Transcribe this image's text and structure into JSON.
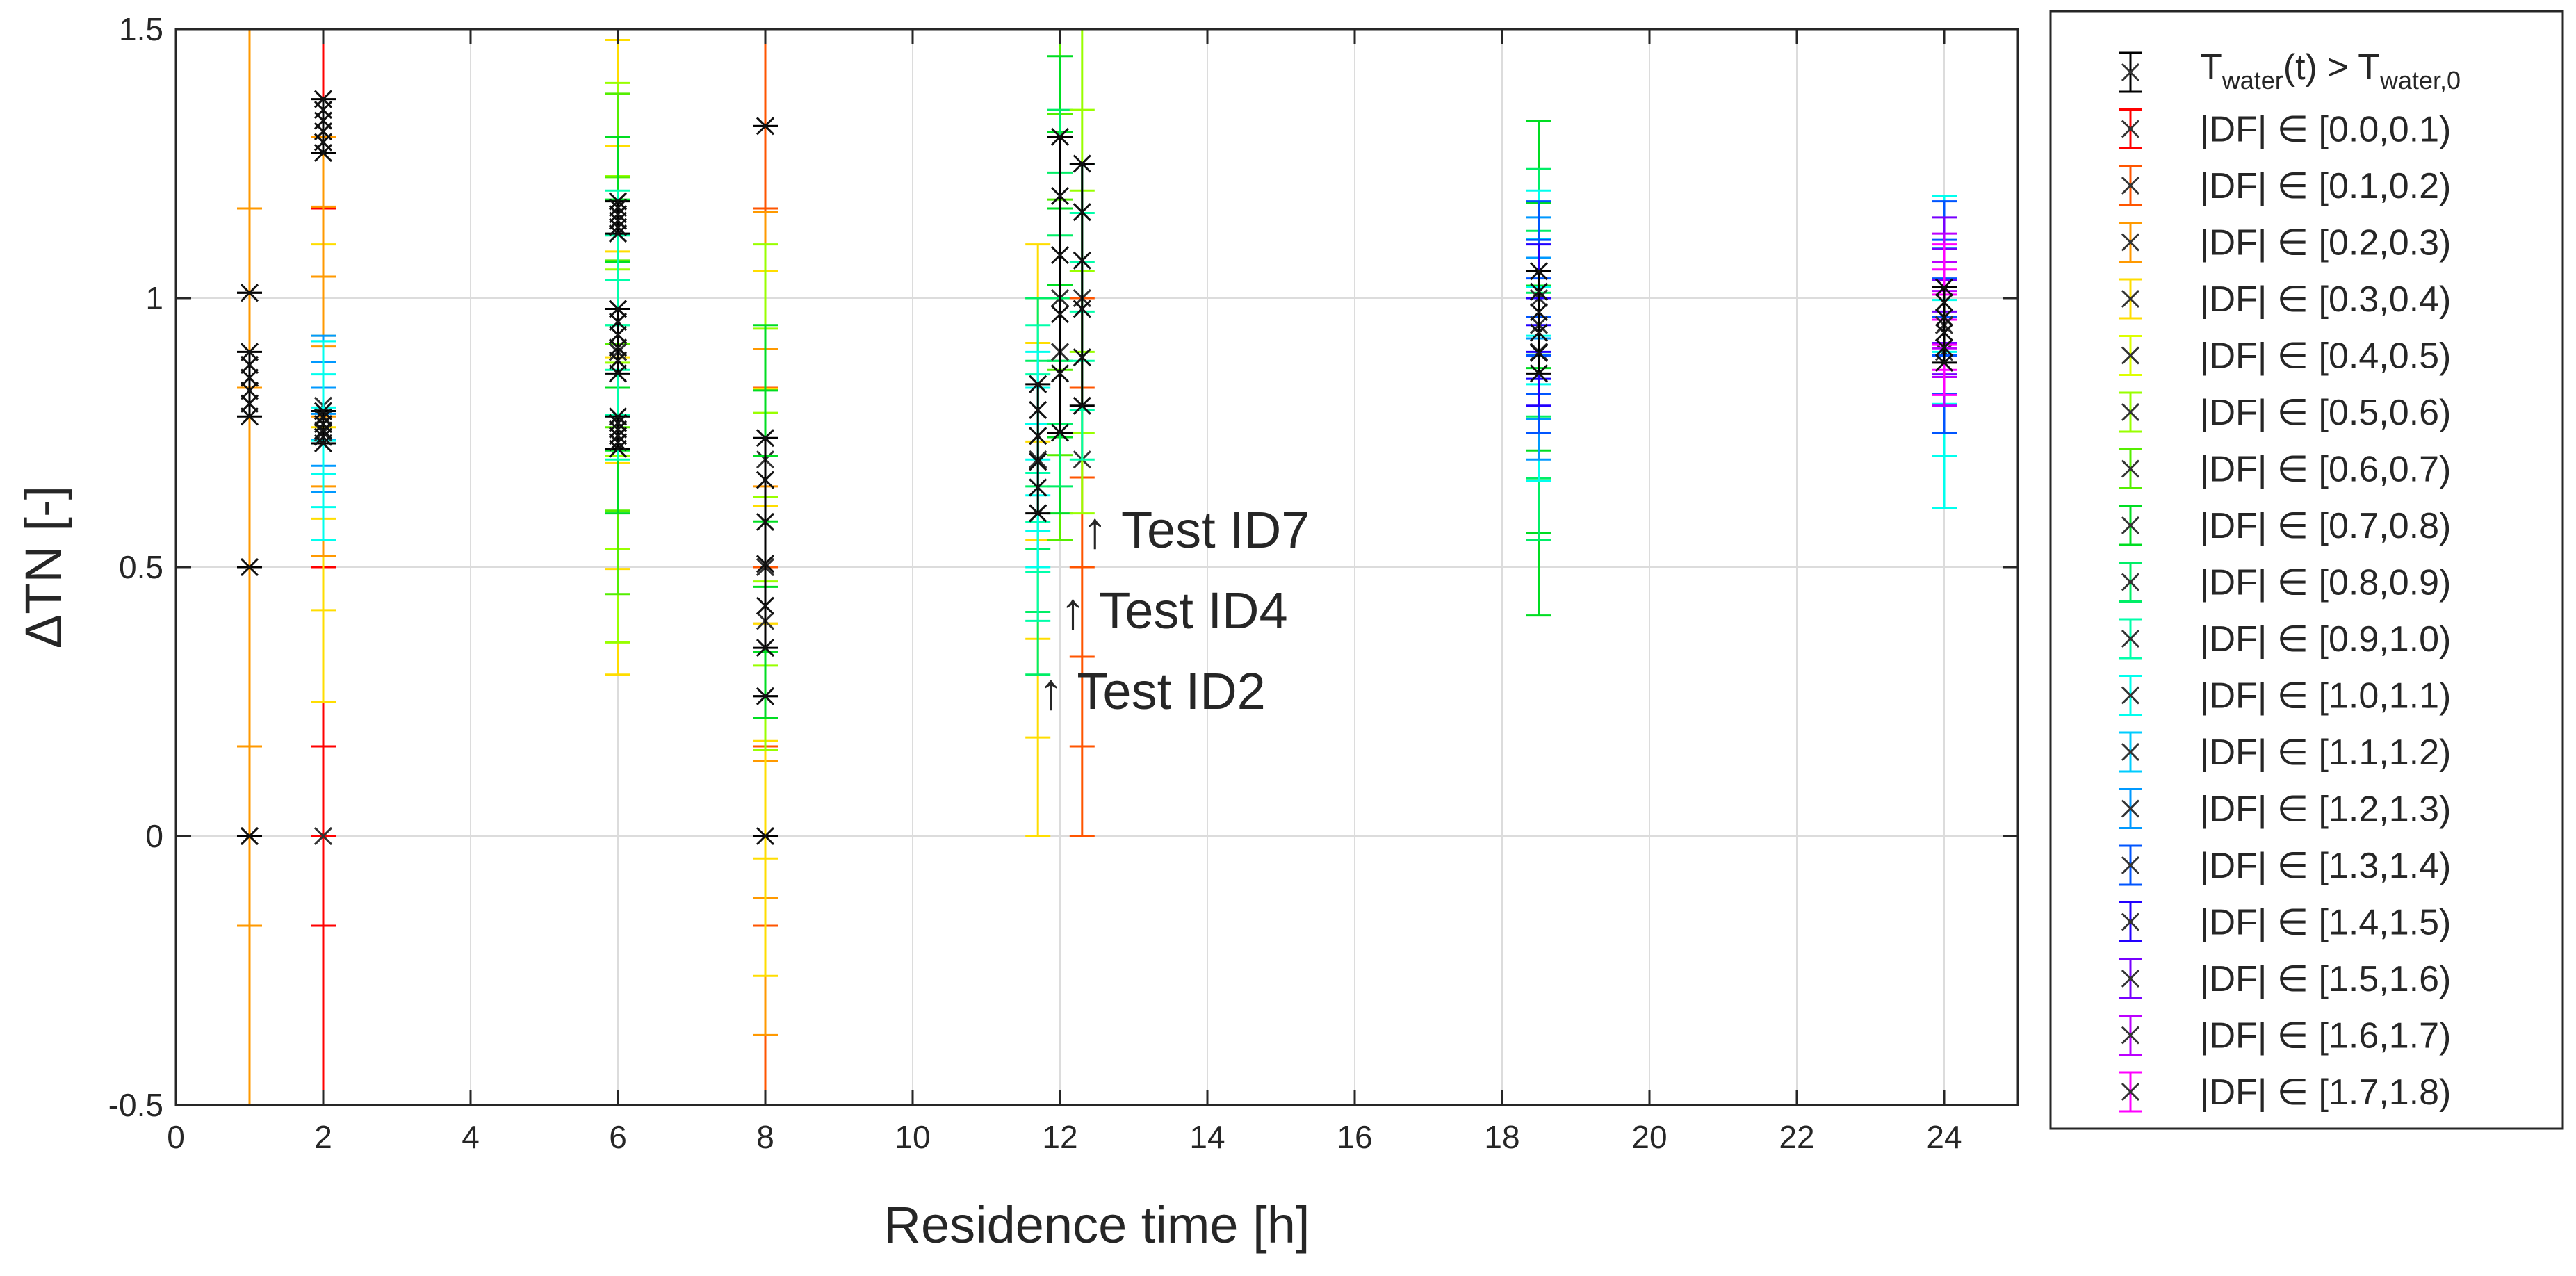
{
  "chart_data": {
    "type": "scatter",
    "title": "",
    "xlabel": "Residence time [h]",
    "ylabel": "ΔTN [-]",
    "xlim": [
      0,
      25
    ],
    "ylim": [
      -0.5,
      1.5
    ],
    "x_ticks": [
      0,
      2,
      4,
      6,
      8,
      10,
      12,
      14,
      16,
      18,
      20,
      22,
      24
    ],
    "x_tick_labels": [
      "0",
      "2",
      "4",
      "6",
      "8",
      "10",
      "12",
      "14",
      "16",
      "18",
      "20",
      "22",
      "24"
    ],
    "y_ticks": [
      -0.5,
      0,
      0.5,
      1,
      1.5
    ],
    "y_tick_labels": [
      "-0.5",
      "0",
      "0.5",
      "1",
      "1.5"
    ],
    "grid": true,
    "legend_position": "outside-right",
    "marker": "x",
    "legend": {
      "header": {
        "color": "#000000",
        "main1": "T",
        "sub1": "water",
        "main2": "(t) > T",
        "sub2": "water,0"
      },
      "entries": [
        {
          "label": "|DF| ∈ [0.0,0.1)",
          "color": "#ff0000"
        },
        {
          "label": "|DF| ∈ [0.1,0.2)",
          "color": "#ff5500"
        },
        {
          "label": "|DF| ∈ [0.2,0.3)",
          "color": "#ff9900"
        },
        {
          "label": "|DF| ∈ [0.3,0.4)",
          "color": "#ffdd00"
        },
        {
          "label": "|DF| ∈ [0.4,0.5)",
          "color": "#ddff00"
        },
        {
          "label": "|DF| ∈ [0.5,0.6)",
          "color": "#99ff00"
        },
        {
          "label": "|DF| ∈ [0.6,0.7)",
          "color": "#55ee00"
        },
        {
          "label": "|DF| ∈ [0.7,0.8)",
          "color": "#00dd22"
        },
        {
          "label": "|DF| ∈ [0.8,0.9)",
          "color": "#00ee66"
        },
        {
          "label": "|DF| ∈ [0.9,1.0)",
          "color": "#00ffaa"
        },
        {
          "label": "|DF| ∈ [1.0,1.1)",
          "color": "#00ffee"
        },
        {
          "label": "|DF| ∈ [1.1,1.2)",
          "color": "#00ccff"
        },
        {
          "label": "|DF| ∈ [1.2,1.3)",
          "color": "#0099ff"
        },
        {
          "label": "|DF| ∈ [1.3,1.4)",
          "color": "#0055ff"
        },
        {
          "label": "|DF| ∈ [1.4,1.5)",
          "color": "#2200ff"
        },
        {
          "label": "|DF| ∈ [1.5,1.6)",
          "color": "#7700ff"
        },
        {
          "label": "|DF| ∈ [1.6,1.7)",
          "color": "#bb00ff"
        },
        {
          "label": "|DF| ∈ [1.7,1.8)",
          "color": "#ff00ff"
        }
      ]
    },
    "annotations": [
      {
        "text": "↑ Test ID7",
        "x": 12.3,
        "y": 0.57
      },
      {
        "text": "↑ Test ID4",
        "x": 12.0,
        "y": 0.42
      },
      {
        "text": "↑ Test ID2",
        "x": 11.7,
        "y": 0.27
      }
    ],
    "series": [
      {
        "x": 1.0,
        "color": "#ff9900",
        "y": 0.0,
        "lower": -0.5,
        "upper": 1.5,
        "black": false
      },
      {
        "x": 1.0,
        "color": "#000000",
        "y": 0.85,
        "lower": 0.78,
        "upper": 0.9,
        "black": true
      },
      {
        "x": 1.0,
        "color": "#000000",
        "y": 1.01,
        "lower": 1.01,
        "upper": 1.01,
        "black": true
      },
      {
        "x": 1.0,
        "color": "#000000",
        "y": 0.5,
        "lower": 0.5,
        "upper": 0.5,
        "black": true
      },
      {
        "x": 1.0,
        "color": "#000000",
        "y": 0.0,
        "lower": 0.0,
        "upper": 0.0,
        "black": true
      },
      {
        "x": 2.0,
        "color": "#ff0000",
        "y": 0.0,
        "lower": -0.5,
        "upper": 1.5,
        "black": false
      },
      {
        "x": 2.0,
        "color": "#ff0000",
        "y": 0.0,
        "lower": 0.0,
        "upper": 0.0,
        "black": false
      },
      {
        "x": 2.0,
        "color": "#ffdd00",
        "y": 0.8,
        "lower": 0.25,
        "upper": 1.27,
        "black": false
      },
      {
        "x": 2.0,
        "color": "#ff9900",
        "y": 0.8,
        "lower": 0.52,
        "upper": 1.3,
        "black": false
      },
      {
        "x": 2.0,
        "color": "#0099ff",
        "y": 0.78,
        "lower": 0.64,
        "upper": 0.93,
        "black": false
      },
      {
        "x": 2.0,
        "color": "#00ffee",
        "y": 0.75,
        "lower": 0.55,
        "upper": 0.92,
        "black": false
      },
      {
        "x": 2.0,
        "color": "#000000",
        "y": 1.35,
        "lower": 1.27,
        "upper": 1.37,
        "black": true
      },
      {
        "x": 2.0,
        "color": "#000000",
        "y": 0.76,
        "lower": 0.73,
        "upper": 0.79,
        "black": true
      },
      {
        "x": 6.0,
        "color": "#ffdd00",
        "y": 0.9,
        "lower": 0.3,
        "upper": 1.48,
        "black": false
      },
      {
        "x": 6.0,
        "color": "#99ff00",
        "y": 0.9,
        "lower": 0.36,
        "upper": 1.4,
        "black": false
      },
      {
        "x": 6.0,
        "color": "#55ee00",
        "y": 0.9,
        "lower": 0.45,
        "upper": 1.38,
        "black": false
      },
      {
        "x": 6.0,
        "color": "#00dd22",
        "y": 0.9,
        "lower": 0.6,
        "upper": 1.3,
        "black": false
      },
      {
        "x": 6.0,
        "color": "#00ffaa",
        "y": 0.9,
        "lower": 0.7,
        "upper": 1.2,
        "black": false
      },
      {
        "x": 6.0,
        "color": "#000000",
        "y": 0.93,
        "lower": 0.86,
        "upper": 0.98,
        "black": true
      },
      {
        "x": 6.0,
        "color": "#000000",
        "y": 1.15,
        "lower": 1.12,
        "upper": 1.18,
        "black": true
      },
      {
        "x": 6.0,
        "color": "#000000",
        "y": 0.76,
        "lower": 0.72,
        "upper": 0.78,
        "black": true
      },
      {
        "x": 8.0,
        "color": "#ff5500",
        "y": 0.7,
        "lower": -0.5,
        "upper": 1.5,
        "black": false
      },
      {
        "x": 8.0,
        "color": "#ff9900",
        "y": 0.5,
        "lower": -0.37,
        "upper": 1.16,
        "black": false
      },
      {
        "x": 8.0,
        "color": "#ffdd00",
        "y": 0.4,
        "lower": -0.26,
        "upper": 1.05,
        "black": false
      },
      {
        "x": 8.0,
        "color": "#99ff00",
        "y": 0.5,
        "lower": 0.16,
        "upper": 1.1,
        "black": false
      },
      {
        "x": 8.0,
        "color": "#00dd22",
        "y": 0.5,
        "lower": 0.22,
        "upper": 0.95,
        "black": false
      },
      {
        "x": 8.0,
        "color": "#000000",
        "y": 0.55,
        "lower": 0.35,
        "upper": 0.74,
        "black": true
      },
      {
        "x": 8.0,
        "color": "#000000",
        "y": 1.32,
        "lower": 1.32,
        "upper": 1.32,
        "black": true
      },
      {
        "x": 8.0,
        "color": "#000000",
        "y": 0.26,
        "lower": 0.26,
        "upper": 0.26,
        "black": true
      },
      {
        "x": 8.0,
        "color": "#000000",
        "y": 0.0,
        "lower": 0.0,
        "upper": 0.0,
        "black": true
      },
      {
        "x": 11.7,
        "color": "#ffdd00",
        "y": 0.6,
        "lower": 0.0,
        "upper": 1.1,
        "black": false
      },
      {
        "x": 11.7,
        "color": "#00ee66",
        "y": 0.7,
        "lower": 0.3,
        "upper": 1.0,
        "black": false
      },
      {
        "x": 11.7,
        "color": "#00ffaa",
        "y": 0.7,
        "lower": 0.4,
        "upper": 0.95,
        "black": false
      },
      {
        "x": 11.7,
        "color": "#00ffee",
        "y": 0.7,
        "lower": 0.5,
        "upper": 0.9,
        "black": false
      },
      {
        "x": 11.7,
        "color": "#000000",
        "y": 0.72,
        "lower": 0.6,
        "upper": 0.84,
        "black": true
      },
      {
        "x": 12.0,
        "color": "#55ee00",
        "y": 1.0,
        "lower": 0.55,
        "upper": 1.5,
        "black": false
      },
      {
        "x": 12.0,
        "color": "#00dd22",
        "y": 1.0,
        "lower": 0.6,
        "upper": 1.45,
        "black": false
      },
      {
        "x": 12.0,
        "color": "#00ee66",
        "y": 0.9,
        "lower": 0.65,
        "upper": 1.35,
        "black": false
      },
      {
        "x": 12.0,
        "color": "#000000",
        "y": 1.0,
        "lower": 0.75,
        "upper": 1.3,
        "black": true
      },
      {
        "x": 12.3,
        "color": "#ff5500",
        "y": 0.7,
        "lower": 0.0,
        "upper": 1.0,
        "black": false
      },
      {
        "x": 12.3,
        "color": "#99ff00",
        "y": 1.0,
        "lower": 0.6,
        "upper": 1.5,
        "black": false
      },
      {
        "x": 12.3,
        "color": "#00ffaa",
        "y": 1.0,
        "lower": 0.7,
        "upper": 1.25,
        "black": false
      },
      {
        "x": 12.3,
        "color": "#000000",
        "y": 1.0,
        "lower": 0.8,
        "upper": 1.25,
        "black": true
      },
      {
        "x": 18.5,
        "color": "#00dd22",
        "y": 0.9,
        "lower": 0.41,
        "upper": 1.33,
        "black": false
      },
      {
        "x": 18.5,
        "color": "#00ee66",
        "y": 0.9,
        "lower": 0.55,
        "upper": 1.24,
        "black": false
      },
      {
        "x": 18.5,
        "color": "#00ffee",
        "y": 0.9,
        "lower": 0.66,
        "upper": 1.2,
        "black": false
      },
      {
        "x": 18.5,
        "color": "#0099ff",
        "y": 0.9,
        "lower": 0.7,
        "upper": 1.15,
        "black": false
      },
      {
        "x": 18.5,
        "color": "#0055ff",
        "y": 1.0,
        "lower": 0.75,
        "upper": 1.18,
        "black": false
      },
      {
        "x": 18.5,
        "color": "#2200ff",
        "y": 0.95,
        "lower": 0.8,
        "upper": 1.1,
        "black": false
      },
      {
        "x": 18.5,
        "color": "#000000",
        "y": 0.95,
        "lower": 0.86,
        "upper": 1.05,
        "black": true
      },
      {
        "x": 24.0,
        "color": "#00ffee",
        "y": 0.9,
        "lower": 0.61,
        "upper": 1.19,
        "black": false
      },
      {
        "x": 24.0,
        "color": "#0055ff",
        "y": 0.95,
        "lower": 0.75,
        "upper": 1.18,
        "black": false
      },
      {
        "x": 24.0,
        "color": "#7700ff",
        "y": 0.95,
        "lower": 0.8,
        "upper": 1.15,
        "black": false
      },
      {
        "x": 24.0,
        "color": "#bb00ff",
        "y": 0.95,
        "lower": 0.8,
        "upper": 1.12,
        "black": false
      },
      {
        "x": 24.0,
        "color": "#ff00ff",
        "y": 0.95,
        "lower": 0.82,
        "upper": 1.1,
        "black": false
      },
      {
        "x": 24.0,
        "color": "#000000",
        "y": 0.95,
        "lower": 0.88,
        "upper": 1.02,
        "black": true
      }
    ]
  }
}
